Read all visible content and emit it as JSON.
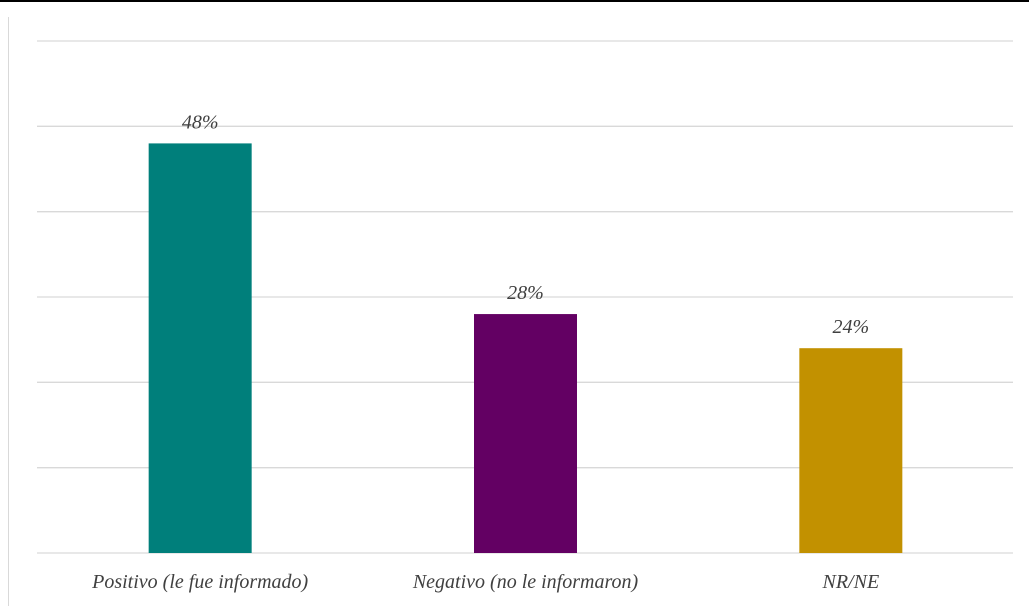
{
  "chart_data": {
    "type": "bar",
    "title": "",
    "xlabel": "",
    "ylabel": "",
    "categories": [
      "Positivo (le fue informado)",
      "Negativo (no le informaron)",
      "NR/NE"
    ],
    "values": [
      48,
      28,
      24
    ],
    "data_labels": [
      "48%",
      "28%",
      "24%"
    ],
    "colors": [
      "#007f7b",
      "#630063",
      "#c29100"
    ],
    "ylim": [
      0,
      60
    ],
    "gridlines": true,
    "grid_step": 10,
    "legend": "none"
  }
}
